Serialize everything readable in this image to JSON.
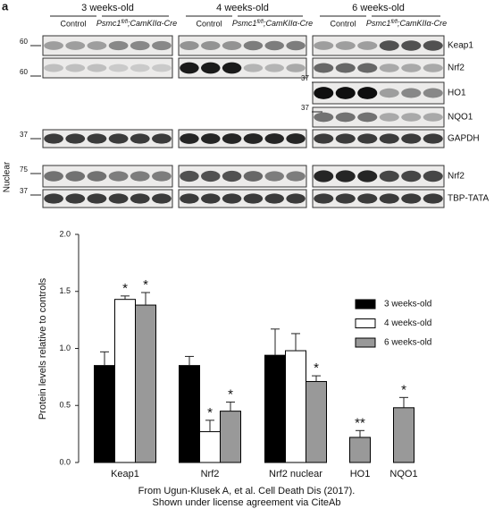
{
  "panel_label": "a",
  "blot": {
    "side_label": "Nuclear",
    "groups": [
      {
        "title": "3 weeks-old",
        "control": "Control",
        "mutant": {
          "gene": "Psmc1",
          "sup": "fl/fl",
          "rest": ";CamKIIα-Cre"
        }
      },
      {
        "title": "4 weeks-old",
        "control": "Control",
        "mutant": {
          "gene": "Psmc1",
          "sup": "fl/fl",
          "rest": ";CamKIIα-Cre"
        }
      },
      {
        "title": "6 weeks-old",
        "control": "Control",
        "mutant": {
          "gene": "Psmc1",
          "sup": "fl/fl",
          "rest": ";CamKIIα-Cre"
        }
      }
    ],
    "rows": [
      {
        "label": "Keap1",
        "marker": 60
      },
      {
        "label": "Nrf2",
        "marker": 60
      },
      {
        "label": "HO1",
        "marker": 37
      },
      {
        "label": "NQO1",
        "marker": 37
      },
      {
        "label": "GAPDH",
        "marker": 37
      },
      {
        "label": "Nrf2",
        "marker": 75
      },
      {
        "label": "TBP-TATA",
        "marker": 37
      }
    ]
  },
  "chart_data": {
    "type": "bar",
    "ylabel": "Protein levels relative to controls",
    "categories": [
      "Keap1",
      "Nrf2",
      "Nrf2 nuclear",
      "HO1",
      "NQO1"
    ],
    "series": [
      {
        "name": "3 weeks-old",
        "color": "#000000",
        "values": [
          0.85,
          0.85,
          0.94,
          null,
          null
        ],
        "errors": [
          0.12,
          0.08,
          0.23,
          null,
          null
        ],
        "significance": [
          null,
          null,
          null,
          null,
          null
        ]
      },
      {
        "name": "4 weeks-old",
        "color": "#ffffff",
        "values": [
          1.43,
          0.27,
          0.98,
          null,
          null
        ],
        "errors": [
          0.03,
          0.1,
          0.15,
          null,
          null
        ],
        "significance": [
          "*",
          "*",
          null,
          null,
          null
        ]
      },
      {
        "name": "6 weeks-old",
        "color": "#999999",
        "values": [
          1.38,
          0.45,
          0.71,
          0.22,
          0.48
        ],
        "errors": [
          0.11,
          0.08,
          0.05,
          0.06,
          0.09
        ],
        "significance": [
          "*",
          "*",
          "*",
          "**",
          "*"
        ]
      }
    ],
    "ylim": [
      0,
      2
    ],
    "yticks": [
      {
        "value": 0,
        "label": "0.0"
      },
      0.5,
      {
        "value": 1,
        "label": "1.0"
      },
      1.5,
      {
        "value": 2,
        "label": "2.0"
      }
    ],
    "legend": "upper right"
  },
  "caption": [
    "From Ugun-Klusek A, et al. Cell Death Dis (2017).",
    "Shown under license agreement via CiteAb"
  ]
}
